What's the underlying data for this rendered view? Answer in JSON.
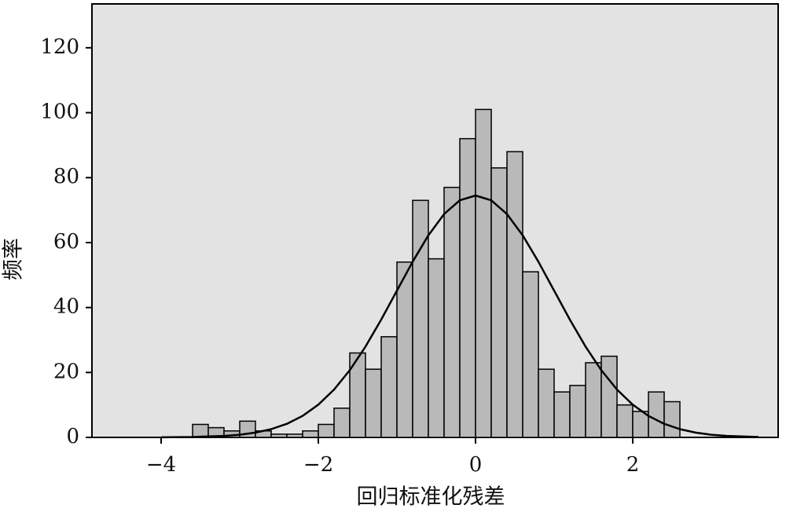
{
  "chart_data": {
    "type": "histogram",
    "xlabel": "回归标准化残差",
    "ylabel": "频率",
    "bins": [
      -3.6,
      -3.4,
      -3.2,
      -3.0,
      -2.8,
      -2.6,
      -2.4,
      -2.2,
      -2.0,
      -1.8,
      -1.6,
      -1.4,
      -1.2,
      -1.0,
      -0.8,
      -0.6,
      -0.4,
      -0.2,
      0,
      0.2,
      0.4,
      0.6,
      0.8,
      1.0,
      1.2,
      1.4,
      1.6,
      1.8,
      2.0,
      2.2,
      2.4,
      2.6
    ],
    "values": [
      4,
      3,
      2,
      5,
      2,
      1,
      1,
      2,
      4,
      9,
      26,
      21,
      31,
      54,
      73,
      55,
      77,
      92,
      101,
      83,
      88,
      51,
      21,
      14,
      16,
      23,
      25,
      10,
      8,
      14,
      11
    ],
    "color": "#b9b9b9",
    "curve": {
      "x": [
        -4.0,
        -3.6,
        -3.2,
        -3.0,
        -2.8,
        -2.6,
        -2.4,
        -2.2,
        -2.0,
        -1.8,
        -1.6,
        -1.4,
        -1.2,
        -1.0,
        -0.8,
        -0.6,
        -0.4,
        -0.2,
        0,
        0.2,
        0.4,
        0.6,
        0.8,
        1.0,
        1.2,
        1.4,
        1.6,
        1.8,
        2.0,
        2.2,
        2.4,
        2.6,
        2.8,
        3.0,
        3.2,
        3.6
      ],
      "values": [
        0.02,
        0.11,
        0.45,
        0.83,
        1.48,
        2.53,
        4.18,
        6.63,
        10.08,
        14.74,
        20.71,
        27.96,
        36.27,
        45.19,
        54.1,
        62.23,
        68.77,
        73.02,
        74.5,
        73.02,
        68.77,
        62.23,
        54.1,
        45.19,
        36.27,
        27.96,
        20.71,
        14.74,
        10.08,
        6.63,
        4.18,
        2.53,
        1.48,
        0.83,
        0.45,
        0.11
      ],
      "color": "#000000"
    },
    "xlim": [
      -4.88,
      3.85
    ],
    "ylim": [
      0,
      133.5
    ],
    "xticks": [
      {
        "value": -4,
        "label": "−4"
      },
      {
        "value": -2,
        "label": "−2"
      },
      0,
      2
    ],
    "yticks": [
      0,
      20,
      40,
      60,
      80,
      100,
      120
    ]
  }
}
